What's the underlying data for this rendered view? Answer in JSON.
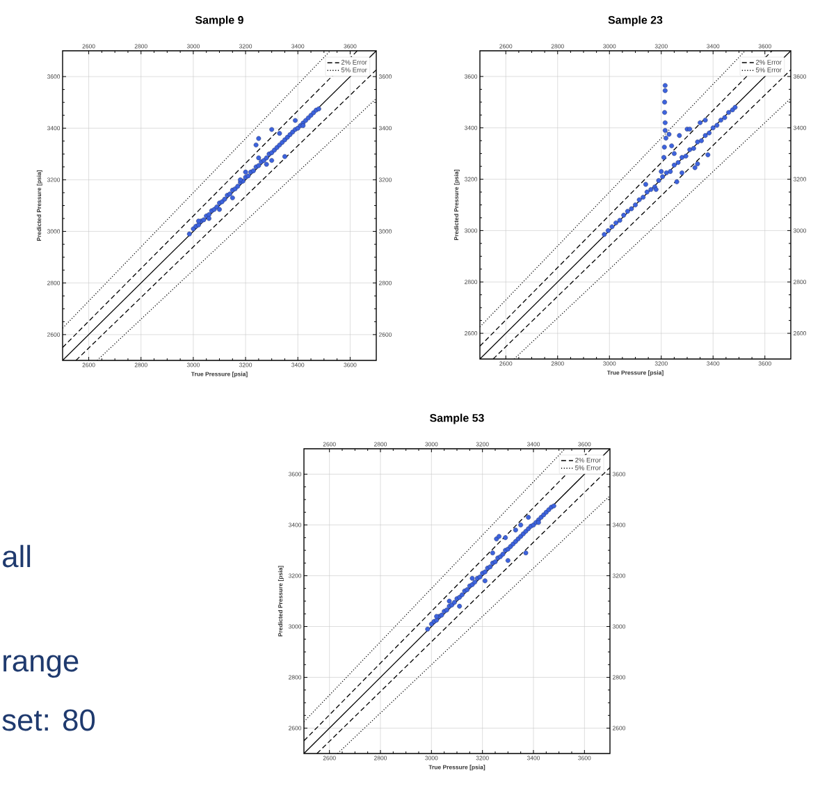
{
  "chart_data": [
    {
      "type": "scatter",
      "title": "Sample 9",
      "xlabel": "True Pressure [psia]",
      "ylabel": "Predicted Pressure [psia]",
      "xlim": [
        2500,
        3700
      ],
      "ylim": [
        2500,
        3700
      ],
      "xticks": [
        2600,
        2800,
        3000,
        3200,
        3400,
        3600
      ],
      "yticks": [
        2600,
        2800,
        3000,
        3200,
        3400,
        3600
      ],
      "x2lim": [
        2500,
        3700
      ],
      "x2ticks": [
        2600,
        2800,
        3000,
        3200,
        3400,
        3600
      ],
      "y2lim": [
        2500,
        3700
      ],
      "y2ticks": [
        2600,
        2800,
        3000,
        3200,
        3400,
        3600
      ],
      "grid": true,
      "legend": "top right",
      "series": [
        {
          "type": "scatter",
          "marker": "circle",
          "color": "#3d63dd",
          "x": [
            2985,
            3000,
            3010,
            3020,
            3030,
            3040,
            3050,
            3060,
            3070,
            3080,
            3090,
            3100,
            3110,
            3120,
            3130,
            3140,
            3150,
            3160,
            3170,
            3180,
            3190,
            3200,
            3210,
            3220,
            3230,
            3240,
            3250,
            3260,
            3270,
            3280,
            3290,
            3300,
            3310,
            3320,
            3330,
            3340,
            3350,
            3360,
            3370,
            3380,
            3390,
            3400,
            3410,
            3420,
            3430,
            3440,
            3450,
            3460,
            3470,
            3480,
            3020,
            3060,
            3100,
            3150,
            3200,
            3250,
            3300,
            3250,
            3240,
            3330,
            3350,
            3300,
            3390,
            3420,
            3280,
            3180
          ],
          "values": [
            2990,
            3010,
            3020,
            3025,
            3040,
            3045,
            3060,
            3065,
            3080,
            3085,
            3095,
            3110,
            3115,
            3125,
            3140,
            3145,
            3160,
            3165,
            3175,
            3190,
            3195,
            3210,
            3215,
            3230,
            3235,
            3250,
            3255,
            3270,
            3275,
            3285,
            3300,
            3305,
            3315,
            3325,
            3335,
            3345,
            3355,
            3365,
            3375,
            3385,
            3395,
            3400,
            3410,
            3420,
            3430,
            3440,
            3450,
            3460,
            3470,
            3475,
            3040,
            3050,
            3085,
            3130,
            3230,
            3285,
            3275,
            3360,
            3335,
            3380,
            3290,
            3395,
            3430,
            3410,
            3260,
            3200
          ]
        },
        {
          "type": "line",
          "line_style": "solid",
          "color": "#000000",
          "x": [
            2500,
            3700
          ],
          "values": [
            2500,
            3700
          ]
        },
        {
          "type": "line",
          "line_style": "dashed",
          "color": "#000000",
          "name": "2% Error",
          "x": [
            2500,
            3627.5
          ],
          "values": [
            2550,
            3700
          ]
        },
        {
          "type": "line",
          "line_style": "dashed",
          "color": "#000000",
          "x": [
            2551,
            3700
          ],
          "values": [
            2500,
            3626
          ]
        },
        {
          "type": "line",
          "line_style": "dotted",
          "color": "#000000",
          "name": "5% Error",
          "x": [
            2500,
            3524
          ],
          "values": [
            2625,
            3700
          ]
        },
        {
          "type": "line",
          "line_style": "dotted",
          "color": "#000000",
          "x": [
            2632,
            3700
          ],
          "values": [
            2500,
            3515
          ]
        }
      ]
    },
    {
      "type": "scatter",
      "title": "Sample 23",
      "xlabel": "True Pressure [psia]",
      "ylabel": "Predicted Pressure [psia]",
      "xlim": [
        2500,
        3700
      ],
      "ylim": [
        2500,
        3700
      ],
      "xticks": [
        2600,
        2800,
        3000,
        3200,
        3400,
        3600
      ],
      "yticks": [
        2600,
        2800,
        3000,
        3200,
        3400,
        3600
      ],
      "x2lim": [
        2500,
        3700
      ],
      "x2ticks": [
        2600,
        2800,
        3000,
        3200,
        3400,
        3600
      ],
      "y2lim": [
        2500,
        3700
      ],
      "y2ticks": [
        2600,
        2800,
        3000,
        3200,
        3400,
        3600
      ],
      "grid": true,
      "legend": "top right",
      "series": [
        {
          "type": "scatter",
          "marker": "circle",
          "color": "#3d63dd",
          "x": [
            2980,
            2995,
            3010,
            3025,
            3040,
            3055,
            3070,
            3085,
            3100,
            3115,
            3130,
            3145,
            3160,
            3175,
            3190,
            3205,
            3220,
            3235,
            3250,
            3265,
            3280,
            3295,
            3310,
            3325,
            3340,
            3355,
            3370,
            3385,
            3400,
            3415,
            3430,
            3445,
            3460,
            3475,
            3485,
            3215,
            3215,
            3213,
            3213,
            3215,
            3215,
            3218,
            3230,
            3212,
            3210,
            3200,
            3240,
            3270,
            3300,
            3310,
            3330,
            3340,
            3260,
            3280,
            3350,
            3370,
            3380,
            3140,
            3180,
            3250
          ],
          "values": [
            2985,
            3000,
            3015,
            3030,
            3040,
            3060,
            3075,
            3085,
            3100,
            3120,
            3130,
            3150,
            3160,
            3170,
            3195,
            3210,
            3225,
            3230,
            3255,
            3265,
            3285,
            3290,
            3315,
            3320,
            3345,
            3350,
            3370,
            3380,
            3400,
            3410,
            3430,
            3440,
            3460,
            3470,
            3480,
            3565,
            3545,
            3500,
            3460,
            3420,
            3390,
            3360,
            3375,
            3325,
            3285,
            3230,
            3330,
            3370,
            3395,
            3395,
            3245,
            3260,
            3190,
            3225,
            3420,
            3430,
            3295,
            3180,
            3160,
            3300
          ]
        },
        {
          "type": "line",
          "line_style": "solid",
          "color": "#000000",
          "x": [
            2500,
            3700
          ],
          "values": [
            2500,
            3700
          ]
        },
        {
          "type": "line",
          "line_style": "dashed",
          "color": "#000000",
          "name": "2% Error",
          "x": [
            2500,
            3627.5
          ],
          "values": [
            2550,
            3700
          ]
        },
        {
          "type": "line",
          "line_style": "dashed",
          "color": "#000000",
          "x": [
            2551,
            3700
          ],
          "values": [
            2500,
            3626
          ]
        },
        {
          "type": "line",
          "line_style": "dotted",
          "color": "#000000",
          "name": "5% Error",
          "x": [
            2500,
            3524
          ],
          "values": [
            2625,
            3700
          ]
        },
        {
          "type": "line",
          "line_style": "dotted",
          "color": "#000000",
          "x": [
            2632,
            3700
          ],
          "values": [
            2500,
            3515
          ]
        }
      ]
    },
    {
      "type": "scatter",
      "title": "Sample 53",
      "xlabel": "True Pressure [psia]",
      "ylabel": "Predicted Pressure [psia]",
      "xlim": [
        2500,
        3700
      ],
      "ylim": [
        2500,
        3700
      ],
      "xticks": [
        2600,
        2800,
        3000,
        3200,
        3400,
        3600
      ],
      "yticks": [
        2600,
        2800,
        3000,
        3200,
        3400,
        3600
      ],
      "x2lim": [
        2500,
        3700
      ],
      "x2ticks": [
        2600,
        2800,
        3000,
        3200,
        3400,
        3600
      ],
      "y2lim": [
        2500,
        3700
      ],
      "y2ticks": [
        2600,
        2800,
        3000,
        3200,
        3400,
        3600
      ],
      "grid": true,
      "legend": "top right",
      "series": [
        {
          "type": "scatter",
          "marker": "circle",
          "color": "#3d63dd",
          "x": [
            2985,
            3000,
            3010,
            3020,
            3030,
            3040,
            3050,
            3060,
            3070,
            3080,
            3090,
            3100,
            3110,
            3120,
            3130,
            3140,
            3150,
            3160,
            3170,
            3180,
            3190,
            3200,
            3210,
            3220,
            3230,
            3240,
            3250,
            3260,
            3270,
            3280,
            3290,
            3300,
            3310,
            3320,
            3330,
            3340,
            3350,
            3360,
            3370,
            3380,
            3390,
            3400,
            3410,
            3420,
            3430,
            3440,
            3450,
            3460,
            3470,
            3480,
            3020,
            3070,
            3110,
            3160,
            3210,
            3255,
            3265,
            3240,
            3300,
            3330,
            3370,
            3380,
            3350,
            3420,
            3290
          ],
          "values": [
            2990,
            3010,
            3020,
            3025,
            3040,
            3045,
            3060,
            3065,
            3080,
            3085,
            3095,
            3110,
            3115,
            3125,
            3140,
            3145,
            3160,
            3165,
            3175,
            3190,
            3195,
            3210,
            3215,
            3230,
            3235,
            3250,
            3255,
            3270,
            3275,
            3285,
            3300,
            3305,
            3315,
            3325,
            3335,
            3345,
            3355,
            3365,
            3375,
            3385,
            3395,
            3400,
            3410,
            3420,
            3430,
            3440,
            3450,
            3460,
            3470,
            3475,
            3040,
            3100,
            3080,
            3190,
            3180,
            3345,
            3355,
            3290,
            3260,
            3380,
            3290,
            3430,
            3400,
            3410,
            3350
          ]
        },
        {
          "type": "line",
          "line_style": "solid",
          "color": "#000000",
          "x": [
            2500,
            3700
          ],
          "values": [
            2500,
            3700
          ]
        },
        {
          "type": "line",
          "line_style": "dashed",
          "color": "#000000",
          "name": "2% Error",
          "x": [
            2500,
            3627.5
          ],
          "values": [
            2550,
            3700
          ]
        },
        {
          "type": "line",
          "line_style": "dashed",
          "color": "#000000",
          "x": [
            2551,
            3700
          ],
          "values": [
            2500,
            3626
          ]
        },
        {
          "type": "line",
          "line_style": "dotted",
          "color": "#000000",
          "name": "5% Error",
          "x": [
            2500,
            3524
          ],
          "values": [
            2625,
            3700
          ]
        },
        {
          "type": "line",
          "line_style": "dotted",
          "color": "#000000",
          "x": [
            2632,
            3700
          ],
          "values": [
            2500,
            3515
          ]
        }
      ]
    },
    {
      "type": "other",
      "annotations": [
        "all",
        "range",
        "set: 80"
      ]
    }
  ]
}
